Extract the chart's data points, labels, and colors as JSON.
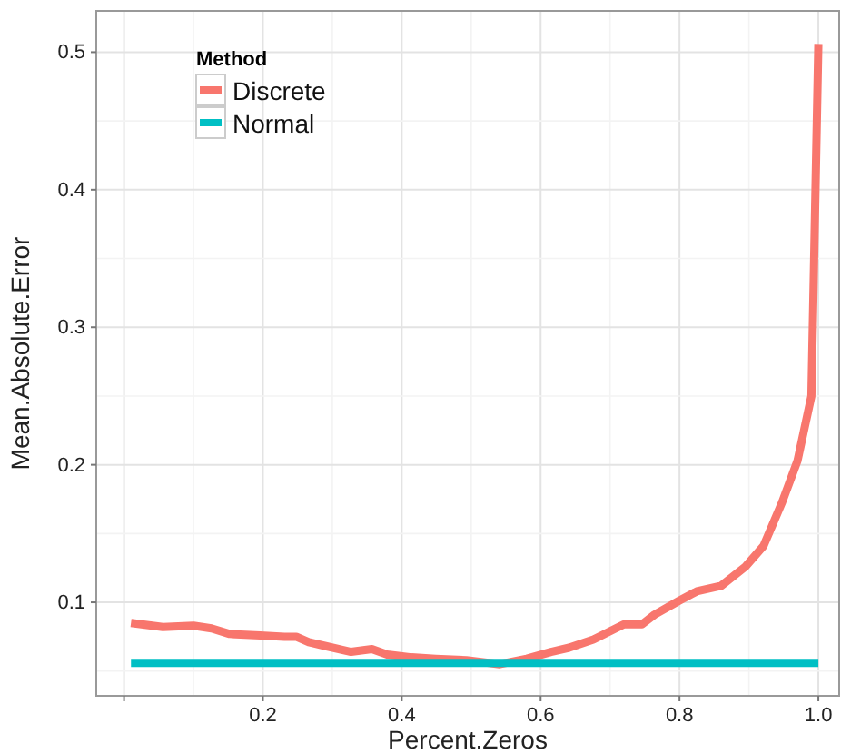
{
  "chart_data": {
    "type": "line",
    "xlabel": "Percent.Zeros",
    "ylabel": "Mean.Absolute.Error",
    "legend_title": "Method",
    "legend": "top left",
    "grid": true,
    "xlim": [
      -0.04,
      1.03
    ],
    "xticks": [
      {
        "value": 0,
        "label": null
      },
      0.2,
      0.4,
      0.6,
      0.8,
      {
        "value": 1,
        "label": "1.0"
      }
    ],
    "ylim": [
      0.032,
      0.53
    ],
    "yticks": [
      0.1,
      0.2,
      0.3,
      0.4,
      0.5
    ],
    "series": [
      {
        "name": "Discrete",
        "color": "#f8766d",
        "x": [
          0.01,
          0.056,
          0.1,
          0.126,
          0.152,
          0.196,
          0.231,
          0.248,
          0.266,
          0.292,
          0.327,
          0.357,
          0.379,
          0.414,
          0.449,
          0.493,
          0.541,
          0.58,
          0.615,
          0.641,
          0.676,
          0.72,
          0.746,
          0.764,
          0.799,
          0.825,
          0.86,
          0.895,
          0.921,
          0.948,
          0.97,
          0.99,
          1.0
        ],
        "values": [
          0.085,
          0.082,
          0.083,
          0.081,
          0.077,
          0.076,
          0.075,
          0.075,
          0.071,
          0.068,
          0.064,
          0.066,
          0.062,
          0.06,
          0.059,
          0.058,
          0.055,
          0.059,
          0.064,
          0.067,
          0.073,
          0.084,
          0.084,
          0.091,
          0.101,
          0.108,
          0.112,
          0.126,
          0.141,
          0.173,
          0.203,
          0.25,
          0.506
        ]
      },
      {
        "name": "Normal",
        "color": "#00bfc4",
        "x": [
          0.01,
          1.0
        ],
        "values": [
          0.056,
          0.056
        ]
      }
    ]
  }
}
